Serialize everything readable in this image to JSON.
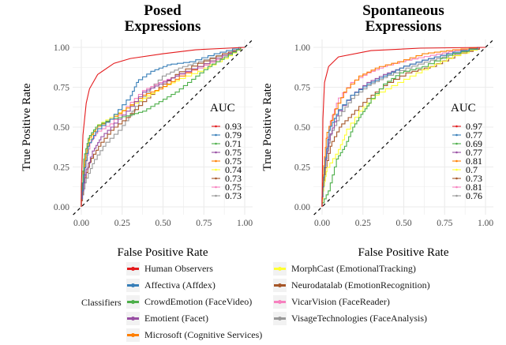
{
  "chart_data": [
    {
      "type": "line",
      "title": "Posed\nExpressions",
      "title_lines": [
        "Posed",
        "Expressions"
      ],
      "xlabel": "False Positive Rate",
      "ylabel": "True Positive Rate",
      "xlim": [
        0,
        1
      ],
      "ylim": [
        0,
        1
      ],
      "xticks": [
        "0.00",
        "0.25",
        "0.50",
        "0.75",
        "1.00"
      ],
      "yticks": [
        "0.00",
        "0.25",
        "0.50",
        "0.75",
        "1.00"
      ],
      "grid": true,
      "diagonal_reference": true,
      "auc_legend_title": "AUC",
      "auc_legend_placement": "bottom-right",
      "series": [
        {
          "name": "Human Observers",
          "auc": "0.93",
          "color": "#E41A1C",
          "points": [
            [
              0,
              0
            ],
            [
              0,
              0.12
            ],
            [
              0.01,
              0.45
            ],
            [
              0.03,
              0.65
            ],
            [
              0.05,
              0.74
            ],
            [
              0.1,
              0.83
            ],
            [
              0.2,
              0.9
            ],
            [
              0.3,
              0.93
            ],
            [
              0.5,
              0.96
            ],
            [
              0.7,
              0.985
            ],
            [
              0.9,
              0.995
            ],
            [
              1,
              1
            ]
          ]
        },
        {
          "name": "Affectiva (Affdex)",
          "auc": "0.79",
          "color": "#377EB8",
          "points": [
            [
              0,
              0
            ],
            [
              0.02,
              0.2
            ],
            [
              0.05,
              0.38
            ],
            [
              0.1,
              0.47
            ],
            [
              0.2,
              0.55
            ],
            [
              0.3,
              0.67
            ],
            [
              0.35,
              0.78
            ],
            [
              0.45,
              0.85
            ],
            [
              0.55,
              0.89
            ],
            [
              0.7,
              0.91
            ],
            [
              0.85,
              0.96
            ],
            [
              1,
              1
            ]
          ]
        },
        {
          "name": "CrowdEmotion (FaceVideo)",
          "auc": "0.71",
          "color": "#4DAF4A",
          "points": [
            [
              0,
              0
            ],
            [
              0.02,
              0.3
            ],
            [
              0.05,
              0.43
            ],
            [
              0.1,
              0.5
            ],
            [
              0.2,
              0.55
            ],
            [
              0.3,
              0.57
            ],
            [
              0.4,
              0.6
            ],
            [
              0.5,
              0.66
            ],
            [
              0.6,
              0.72
            ],
            [
              0.7,
              0.8
            ],
            [
              0.8,
              0.88
            ],
            [
              0.9,
              0.94
            ],
            [
              1,
              1
            ]
          ]
        },
        {
          "name": "Emotient (Facet)",
          "auc": "0.75",
          "color": "#984EA3",
          "points": [
            [
              0,
              0
            ],
            [
              0.03,
              0.2
            ],
            [
              0.08,
              0.35
            ],
            [
              0.12,
              0.42
            ],
            [
              0.2,
              0.5
            ],
            [
              0.3,
              0.6
            ],
            [
              0.4,
              0.72
            ],
            [
              0.5,
              0.77
            ],
            [
              0.6,
              0.82
            ],
            [
              0.75,
              0.88
            ],
            [
              0.9,
              0.95
            ],
            [
              1,
              1
            ]
          ]
        },
        {
          "name": "Microsoft (Cognitive Services)",
          "auc": "0.75",
          "color": "#FF7F00",
          "points": [
            [
              0,
              0
            ],
            [
              0.02,
              0.25
            ],
            [
              0.05,
              0.42
            ],
            [
              0.1,
              0.49
            ],
            [
              0.2,
              0.55
            ],
            [
              0.3,
              0.62
            ],
            [
              0.4,
              0.7
            ],
            [
              0.5,
              0.74
            ],
            [
              0.6,
              0.8
            ],
            [
              0.75,
              0.88
            ],
            [
              0.9,
              0.95
            ],
            [
              1,
              1
            ]
          ]
        },
        {
          "name": "MorphCast (EmotionalTracking)",
          "auc": "0.74",
          "color": "#FFFF33",
          "points": [
            [
              0,
              0
            ],
            [
              0.02,
              0.22
            ],
            [
              0.05,
              0.4
            ],
            [
              0.1,
              0.5
            ],
            [
              0.2,
              0.56
            ],
            [
              0.3,
              0.62
            ],
            [
              0.4,
              0.68
            ],
            [
              0.5,
              0.74
            ],
            [
              0.6,
              0.79
            ],
            [
              0.75,
              0.85
            ],
            [
              0.9,
              0.93
            ],
            [
              1,
              1
            ]
          ]
        },
        {
          "name": "Neurodatalab (EmotionRecognition)",
          "auc": "0.73",
          "color": "#A65628",
          "points": [
            [
              0,
              0
            ],
            [
              0.02,
              0.15
            ],
            [
              0.06,
              0.28
            ],
            [
              0.12,
              0.38
            ],
            [
              0.2,
              0.48
            ],
            [
              0.3,
              0.56
            ],
            [
              0.4,
              0.66
            ],
            [
              0.5,
              0.75
            ],
            [
              0.6,
              0.83
            ],
            [
              0.75,
              0.9
            ],
            [
              0.9,
              0.96
            ],
            [
              1,
              1
            ]
          ]
        },
        {
          "name": "VicarVision (FaceReader)",
          "auc": "0.75",
          "color": "#F781BF",
          "points": [
            [
              0,
              0
            ],
            [
              0.03,
              0.25
            ],
            [
              0.06,
              0.4
            ],
            [
              0.1,
              0.46
            ],
            [
              0.2,
              0.52
            ],
            [
              0.3,
              0.63
            ],
            [
              0.4,
              0.73
            ],
            [
              0.5,
              0.78
            ],
            [
              0.6,
              0.82
            ],
            [
              0.75,
              0.87
            ],
            [
              0.9,
              0.94
            ],
            [
              1,
              1
            ]
          ]
        },
        {
          "name": "VisageTechnologies (FaceAnalysis)",
          "auc": "0.73",
          "color": "#999999",
          "points": [
            [
              0,
              0
            ],
            [
              0.03,
              0.15
            ],
            [
              0.08,
              0.27
            ],
            [
              0.15,
              0.38
            ],
            [
              0.25,
              0.48
            ],
            [
              0.33,
              0.6
            ],
            [
              0.42,
              0.72
            ],
            [
              0.52,
              0.82
            ],
            [
              0.62,
              0.87
            ],
            [
              0.75,
              0.91
            ],
            [
              0.9,
              0.96
            ],
            [
              1,
              1
            ]
          ]
        }
      ]
    },
    {
      "type": "line",
      "title": "Spontaneous\nExpressions",
      "title_lines": [
        "Spontaneous",
        "Expressions"
      ],
      "xlabel": "False Positive Rate",
      "ylabel": "True Positive Rate",
      "xlim": [
        0,
        1
      ],
      "ylim": [
        0,
        1
      ],
      "xticks": [
        "0.00",
        "0.25",
        "0.50",
        "0.75",
        "1.00"
      ],
      "yticks": [
        "0.00",
        "0.25",
        "0.50",
        "0.75",
        "1.00"
      ],
      "grid": true,
      "diagonal_reference": true,
      "auc_legend_title": "AUC",
      "auc_legend_placement": "bottom-right",
      "series": [
        {
          "name": "Human Observers",
          "auc": "0.97",
          "color": "#E41A1C",
          "points": [
            [
              0,
              0
            ],
            [
              0.005,
              0.55
            ],
            [
              0.015,
              0.78
            ],
            [
              0.04,
              0.88
            ],
            [
              0.1,
              0.94
            ],
            [
              0.3,
              0.98
            ],
            [
              0.6,
              0.995
            ],
            [
              1,
              1
            ]
          ]
        },
        {
          "name": "Affectiva (Affdex)",
          "auc": "0.77",
          "color": "#377EB8",
          "points": [
            [
              0,
              0
            ],
            [
              0.02,
              0.25
            ],
            [
              0.05,
              0.48
            ],
            [
              0.1,
              0.58
            ],
            [
              0.2,
              0.7
            ],
            [
              0.3,
              0.77
            ],
            [
              0.4,
              0.82
            ],
            [
              0.5,
              0.87
            ],
            [
              0.65,
              0.92
            ],
            [
              0.8,
              0.96
            ],
            [
              1,
              1
            ]
          ]
        },
        {
          "name": "CrowdEmotion (FaceVideo)",
          "auc": "0.69",
          "color": "#4DAF4A",
          "points": [
            [
              0,
              0
            ],
            [
              0.05,
              0.1
            ],
            [
              0.1,
              0.3
            ],
            [
              0.15,
              0.38
            ],
            [
              0.2,
              0.5
            ],
            [
              0.25,
              0.58
            ],
            [
              0.3,
              0.65
            ],
            [
              0.4,
              0.77
            ],
            [
              0.5,
              0.84
            ],
            [
              0.65,
              0.88
            ],
            [
              0.8,
              0.95
            ],
            [
              1,
              1
            ]
          ]
        },
        {
          "name": "Emotient (Facet)",
          "auc": "0.77",
          "color": "#984EA3",
          "points": [
            [
              0,
              0
            ],
            [
              0.02,
              0.25
            ],
            [
              0.05,
              0.42
            ],
            [
              0.1,
              0.57
            ],
            [
              0.2,
              0.7
            ],
            [
              0.3,
              0.78
            ],
            [
              0.4,
              0.83
            ],
            [
              0.5,
              0.87
            ],
            [
              0.65,
              0.92
            ],
            [
              0.8,
              0.96
            ],
            [
              1,
              1
            ]
          ]
        },
        {
          "name": "Microsoft (Cognitive Services)",
          "auc": "0.81",
          "color": "#FF7F00",
          "points": [
            [
              0,
              0
            ],
            [
              0.01,
              0.2
            ],
            [
              0.03,
              0.43
            ],
            [
              0.08,
              0.58
            ],
            [
              0.15,
              0.72
            ],
            [
              0.25,
              0.82
            ],
            [
              0.35,
              0.87
            ],
            [
              0.5,
              0.91
            ],
            [
              0.65,
              0.96
            ],
            [
              0.8,
              0.98
            ],
            [
              1,
              1
            ]
          ]
        },
        {
          "name": "MorphCast (EmotionalTracking)",
          "auc": "0.7",
          "color": "#FFFF33",
          "points": [
            [
              0,
              0
            ],
            [
              0.01,
              0.1
            ],
            [
              0.03,
              0.22
            ],
            [
              0.1,
              0.33
            ],
            [
              0.15,
              0.45
            ],
            [
              0.25,
              0.6
            ],
            [
              0.35,
              0.7
            ],
            [
              0.5,
              0.78
            ],
            [
              0.65,
              0.86
            ],
            [
              0.8,
              0.93
            ],
            [
              1,
              1
            ]
          ]
        },
        {
          "name": "Neurodatalab (EmotionRecognition)",
          "auc": "0.73",
          "color": "#A65628",
          "points": [
            [
              0,
              0
            ],
            [
              0.02,
              0.2
            ],
            [
              0.06,
              0.38
            ],
            [
              0.12,
              0.5
            ],
            [
              0.2,
              0.58
            ],
            [
              0.3,
              0.68
            ],
            [
              0.4,
              0.76
            ],
            [
              0.55,
              0.84
            ],
            [
              0.7,
              0.88
            ],
            [
              0.85,
              0.95
            ],
            [
              1,
              1
            ]
          ]
        },
        {
          "name": "VicarVision (FaceReader)",
          "auc": "0.81",
          "color": "#F781BF",
          "points": [
            [
              0,
              0
            ],
            [
              0.02,
              0.25
            ],
            [
              0.05,
              0.5
            ],
            [
              0.1,
              0.65
            ],
            [
              0.2,
              0.78
            ],
            [
              0.3,
              0.84
            ],
            [
              0.4,
              0.88
            ],
            [
              0.55,
              0.92
            ],
            [
              0.7,
              0.95
            ],
            [
              0.85,
              0.98
            ],
            [
              1,
              1
            ]
          ]
        },
        {
          "name": "VisageTechnologies (FaceAnalysis)",
          "auc": "0.76",
          "color": "#999999",
          "points": [
            [
              0,
              0
            ],
            [
              0.02,
              0.25
            ],
            [
              0.06,
              0.45
            ],
            [
              0.12,
              0.57
            ],
            [
              0.2,
              0.68
            ],
            [
              0.3,
              0.76
            ],
            [
              0.4,
              0.81
            ],
            [
              0.55,
              0.87
            ],
            [
              0.7,
              0.92
            ],
            [
              0.85,
              0.96
            ],
            [
              1,
              1
            ]
          ]
        }
      ]
    }
  ],
  "legend": {
    "title": "Classifiers",
    "placement": "bottom",
    "items": [
      {
        "label": "Human Observers",
        "color": "#E41A1C"
      },
      {
        "label": "Affectiva (Affdex)",
        "color": "#377EB8"
      },
      {
        "label": "CrowdEmotion (FaceVideo)",
        "color": "#4DAF4A"
      },
      {
        "label": "Emotient (Facet)",
        "color": "#984EA3"
      },
      {
        "label": "Microsoft (Cognitive Services)",
        "color": "#FF7F00"
      },
      {
        "label": "MorphCast (EmotionalTracking)",
        "color": "#FFFF33"
      },
      {
        "label": "Neurodatalab (EmotionRecognition)",
        "color": "#A65628"
      },
      {
        "label": "VicarVision (FaceReader)",
        "color": "#F781BF"
      },
      {
        "label": "VisageTechnologies (FaceAnalysis)",
        "color": "#999999"
      }
    ]
  }
}
